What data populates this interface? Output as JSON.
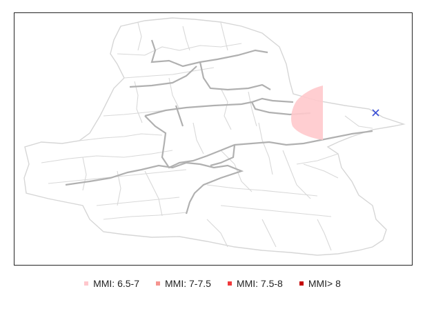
{
  "map": {
    "epicenter_marker": "x-marker",
    "colors": {
      "boundary_minor": "#d6d6d6",
      "boundary_major": "#b0b0b0",
      "intensity_zone": "#ffc9cc",
      "epicenter": "#3a4fd6"
    }
  },
  "legend": {
    "items": [
      {
        "label": "MMI: 6.5-7",
        "color": "#ffc7cc"
      },
      {
        "label": "MMI: 7-7.5",
        "color": "#f5948f"
      },
      {
        "label": "MMI: 7.5-8",
        "color": "#f0393b"
      },
      {
        "label": "MMI> 8",
        "color": "#c40000"
      }
    ]
  }
}
